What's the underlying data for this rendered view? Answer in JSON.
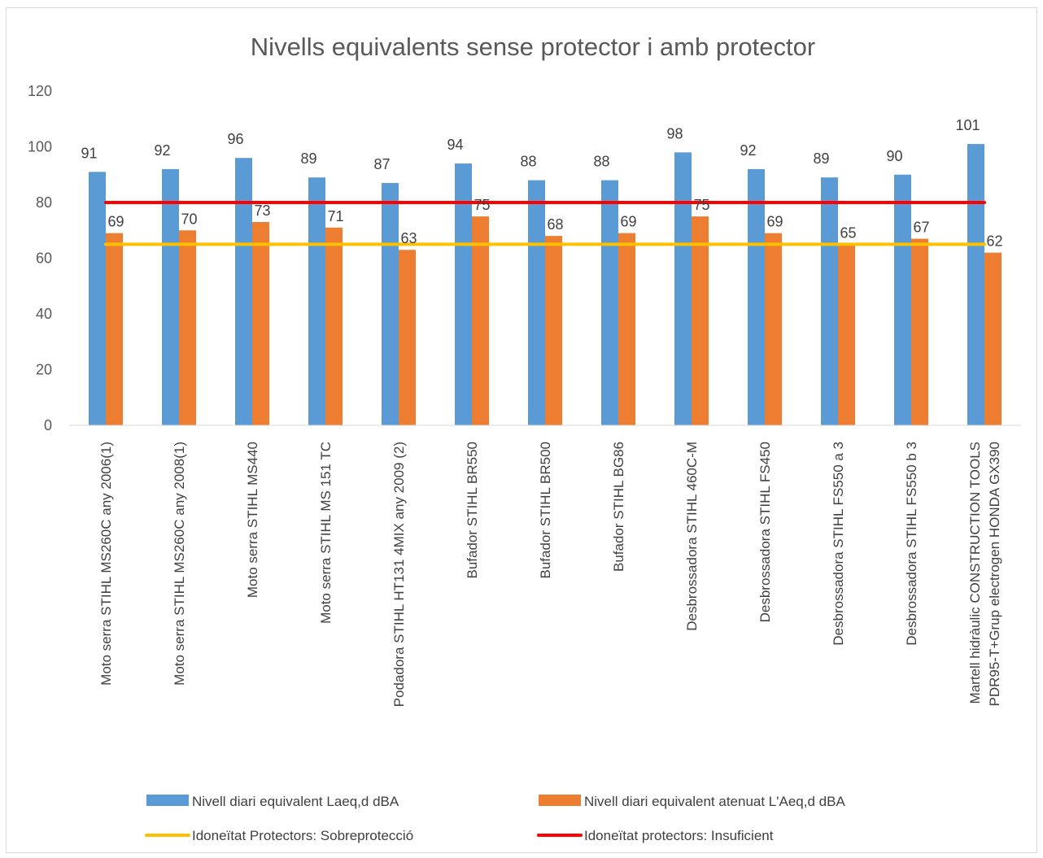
{
  "chart_data": {
    "type": "bar",
    "title": "Nivells equivalents sense protector i amb protector",
    "xlabel": "",
    "ylabel": "",
    "ylim": [
      0,
      120
    ],
    "yticks": [
      0,
      20,
      40,
      60,
      80,
      100,
      120
    ],
    "grid": false,
    "legend_position": "bottom",
    "categories": [
      [
        "Moto serra STIHL MS260C any 2006(1)"
      ],
      [
        "Moto serra STIHL MS260C any 2008(1)"
      ],
      [
        "Moto serra STIHL MS440"
      ],
      [
        "Moto serra STIHL MS 151 TC"
      ],
      [
        "Podadora STIHL HT131 4MIX any 2009 (2)"
      ],
      [
        "Bufador STIHL BR550"
      ],
      [
        "Bufador STIHL BR500"
      ],
      [
        "Bufador STIHL BG86"
      ],
      [
        "Desbrossadora STIHL 460C-M"
      ],
      [
        "Desbrossadora STIHL FS450"
      ],
      [
        "Desbrossadora STIHL FS550 a 3"
      ],
      [
        "Desbrossadora STIHL FS550 b 3"
      ],
      [
        "Martell hidràulic CONSTRUCTION TOOLS",
        "PDR95-T+Grup electrogen HONDA GX390"
      ]
    ],
    "series": [
      {
        "name": "Nivell diari equivalent Laeq,d dBA",
        "kind": "bar",
        "color": "#5b9bd5",
        "values": [
          91,
          92,
          96,
          89,
          87,
          94,
          88,
          88,
          98,
          92,
          89,
          90,
          101
        ]
      },
      {
        "name": "Nivell diari equivalent atenuat L'Aeq,d dBA",
        "kind": "bar",
        "color": "#ed7d31",
        "values": [
          69,
          70,
          73,
          71,
          63,
          75,
          68,
          69,
          75,
          69,
          65,
          67,
          62
        ]
      },
      {
        "name": "Idoneïtat Protectors: Sobreprotecció",
        "kind": "line",
        "color": "#ffc000",
        "values": [
          65,
          65,
          65,
          65,
          65,
          65,
          65,
          65,
          65,
          65,
          65,
          65,
          65
        ]
      },
      {
        "name": "Idoneïtat protectors: Insuficient",
        "kind": "line",
        "color": "#ff0000",
        "values": [
          80,
          80,
          80,
          80,
          80,
          80,
          80,
          80,
          80,
          80,
          80,
          80,
          80
        ]
      }
    ]
  }
}
